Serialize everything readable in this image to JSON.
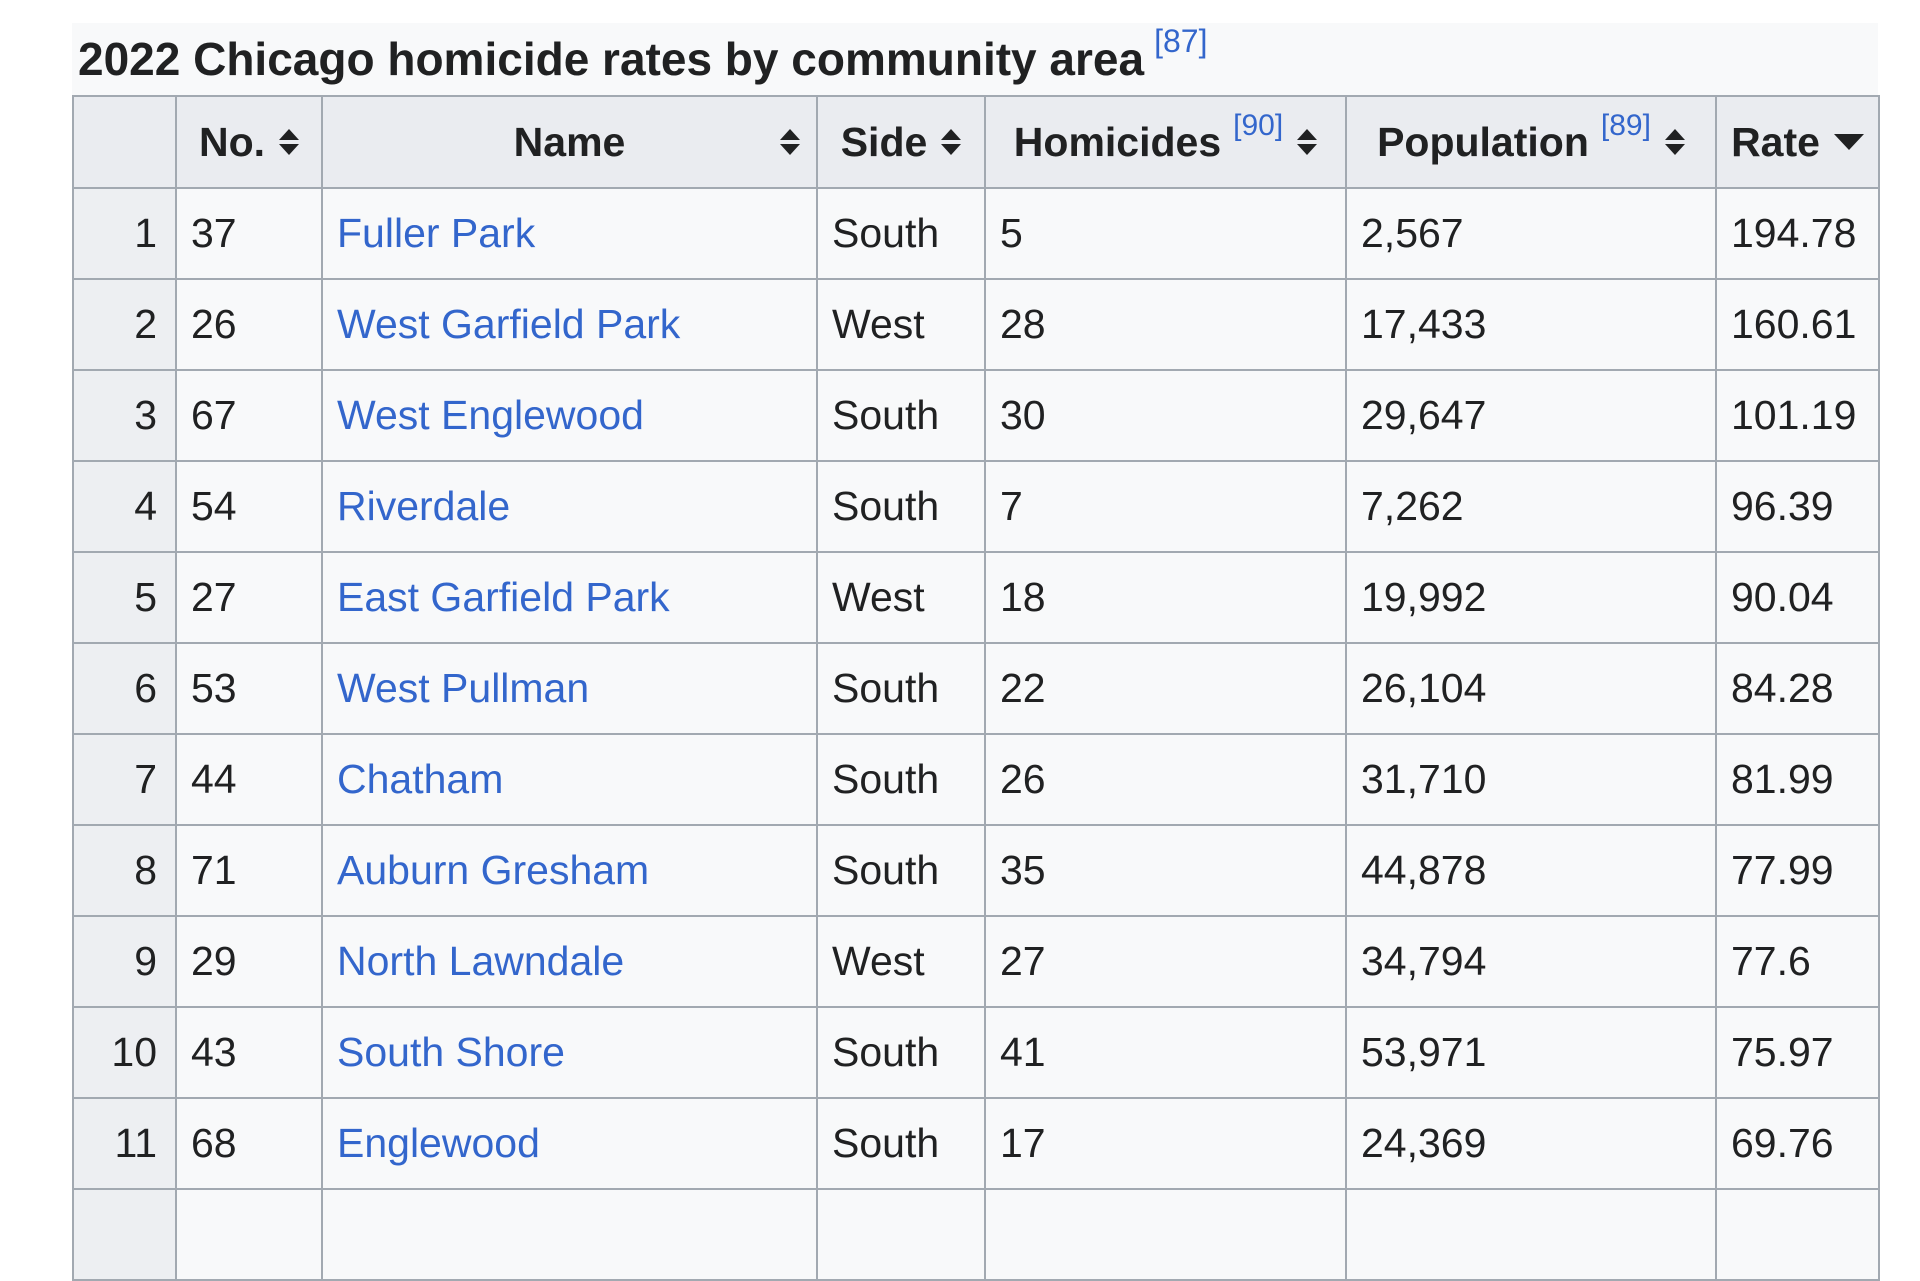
{
  "title": {
    "text": "2022 Chicago homicide rates by community area",
    "ref": "[87]"
  },
  "table": {
    "headers": [
      {
        "label": "",
        "sortable": false
      },
      {
        "label": "No.",
        "sortable": true,
        "sort": "both"
      },
      {
        "label": "Name",
        "sortable": true,
        "sort": "both"
      },
      {
        "label": "Side",
        "sortable": true,
        "sort": "both"
      },
      {
        "label": "Homicides",
        "ref": "[90]",
        "sortable": true,
        "sort": "both"
      },
      {
        "label": "Population",
        "ref": "[89]",
        "sortable": true,
        "sort": "both"
      },
      {
        "label": "Rate",
        "sortable": true,
        "sort": "desc"
      }
    ],
    "rows": [
      {
        "rank": "1",
        "no": "37",
        "name": "Fuller Park",
        "side": "South",
        "homicides": "5",
        "population": "2,567",
        "rate": "194.78"
      },
      {
        "rank": "2",
        "no": "26",
        "name": "West Garfield Park",
        "side": "West",
        "homicides": "28",
        "population": "17,433",
        "rate": "160.61"
      },
      {
        "rank": "3",
        "no": "67",
        "name": "West Englewood",
        "side": "South",
        "homicides": "30",
        "population": "29,647",
        "rate": "101.19"
      },
      {
        "rank": "4",
        "no": "54",
        "name": "Riverdale",
        "side": "South",
        "homicides": "7",
        "population": "7,262",
        "rate": "96.39"
      },
      {
        "rank": "5",
        "no": "27",
        "name": "East Garfield Park",
        "side": "West",
        "homicides": "18",
        "population": "19,992",
        "rate": "90.04"
      },
      {
        "rank": "6",
        "no": "53",
        "name": "West Pullman",
        "side": "South",
        "homicides": "22",
        "population": "26,104",
        "rate": "84.28"
      },
      {
        "rank": "7",
        "no": "44",
        "name": "Chatham",
        "side": "South",
        "homicides": "26",
        "population": "31,710",
        "rate": "81.99"
      },
      {
        "rank": "8",
        "no": "71",
        "name": "Auburn Gresham",
        "side": "South",
        "homicides": "35",
        "population": "44,878",
        "rate": "77.99"
      },
      {
        "rank": "9",
        "no": "29",
        "name": "North Lawndale",
        "side": "West",
        "homicides": "27",
        "population": "34,794",
        "rate": "77.6"
      },
      {
        "rank": "10",
        "no": "43",
        "name": "South Shore",
        "side": "South",
        "homicides": "41",
        "population": "53,971",
        "rate": "75.97"
      },
      {
        "rank": "11",
        "no": "68",
        "name": "Englewood",
        "side": "South",
        "homicides": "17",
        "population": "24,369",
        "rate": "69.76"
      },
      {
        "rank": "",
        "no": "",
        "name": "",
        "side": "",
        "homicides": "",
        "population": "",
        "rate": ""
      }
    ]
  },
  "colors": {
    "link": "#3366cc",
    "header_bg": "#eaecf0",
    "cell_bg": "#f8f9fa",
    "rank_cell_bg": "#edeff2",
    "border": "#a2a9b1",
    "text": "#202122",
    "page_bg": "#ffffff"
  }
}
